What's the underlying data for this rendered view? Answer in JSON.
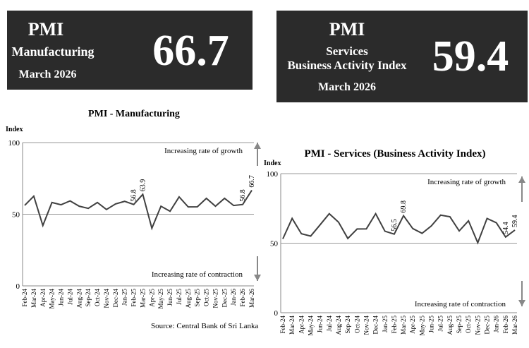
{
  "cards": [
    {
      "title": "PMI",
      "subtitle": "Manufacturing",
      "line2": "",
      "period": "March 2026",
      "value": "66.7"
    },
    {
      "title": "PMI",
      "subtitle": "Services",
      "line2": "Business Activity Index",
      "period": "March 2026",
      "value": "59.4"
    }
  ],
  "source": "Source: Central Bank of Sri Lanka",
  "chart_data": [
    {
      "type": "line",
      "title": "PMI - Manufacturing",
      "ylabel": "Index",
      "ylim": [
        0,
        100
      ],
      "yticks": [
        0,
        50,
        100
      ],
      "categories": [
        "Feb-24",
        "Mar-24",
        "Apr-24",
        "May-24",
        "Jun-24",
        "Jul-24",
        "Aug-24",
        "Sep-24",
        "Oct-24",
        "Nov-24",
        "Dec-24",
        "Jan-25",
        "Feb-25",
        "Mar-25",
        "Apr-25",
        "May-25",
        "Jun-25",
        "Jul-25",
        "Aug-25",
        "Sep-25",
        "Oct-25",
        "Nov-25",
        "Dec-25",
        "Jan-26",
        "Feb-26",
        "Mar-26"
      ],
      "values": [
        56.2,
        62.6,
        42.1,
        58.2,
        56.6,
        59.3,
        55.6,
        54.1,
        58.2,
        53.3,
        57.2,
        59.0,
        56.8,
        63.9,
        40.2,
        55.6,
        52.1,
        62.1,
        55.1,
        55.2,
        61.1,
        55.6,
        61.1,
        56.1,
        56.8,
        66.7
      ],
      "data_labels": {
        "12": "56.8",
        "13": "63.9",
        "24": "56.8",
        "25": "66.7"
      },
      "reference_line": 50,
      "annotations": [
        "Increasing rate of growth",
        "Increasing rate of contraction"
      ],
      "line_color": "#404040"
    },
    {
      "type": "line",
      "title": "PMI - Services (Business Activity Index)",
      "ylabel": "Index",
      "ylim": [
        0,
        100
      ],
      "yticks": [
        0,
        50,
        100
      ],
      "categories": [
        "Feb-24",
        "Mar-24",
        "Apr-24",
        "May-24",
        "Jun-24",
        "Jul-24",
        "Aug-24",
        "Sep-24",
        "Oct-24",
        "Nov-24",
        "Dec-24",
        "Jan-25",
        "Feb-25",
        "Mar-25",
        "Apr-25",
        "May-25",
        "Jun-25",
        "Jul-25",
        "Aug-25",
        "Sep-25",
        "Oct-25",
        "Nov-25",
        "Dec-25",
        "Jan-26",
        "Feb-26",
        "Mar-26"
      ],
      "values": [
        53.1,
        67.8,
        56.8,
        55.1,
        63.1,
        71.2,
        65.1,
        53.4,
        60.2,
        60.3,
        71.2,
        58.6,
        56.5,
        69.8,
        60.5,
        57.1,
        62.4,
        70.2,
        69.0,
        58.8,
        66.1,
        50.3,
        67.8,
        64.7,
        54.4,
        59.4
      ],
      "data_labels": {
        "12": "56.5",
        "13": "69.8",
        "24": "54.4",
        "25": "59.4"
      },
      "reference_line": 50,
      "annotations": [
        "Increasing rate of growth",
        "Increasing rate of contraction"
      ],
      "line_color": "#404040"
    }
  ]
}
